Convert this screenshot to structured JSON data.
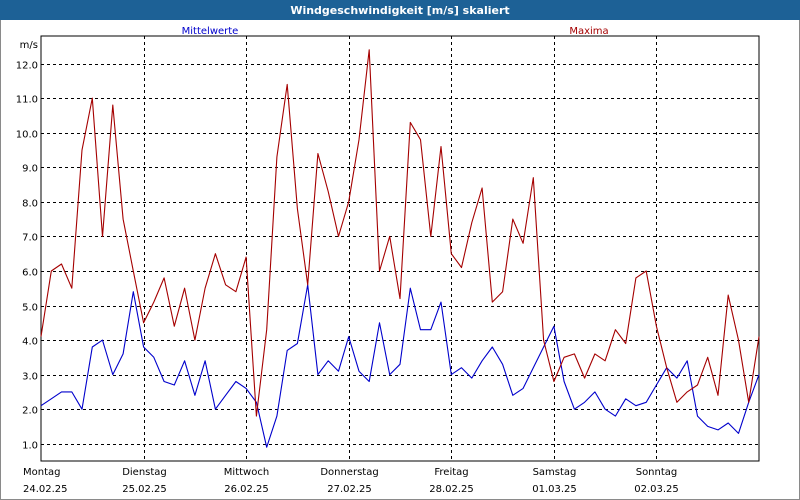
{
  "window": {
    "title": "Windgeschwindigkeit [m/s] skaliert"
  },
  "colors": {
    "title_bar": "#1d6196",
    "mean": "#0000cc",
    "max": "#a50000",
    "grid": "#000000"
  },
  "chart_data": {
    "type": "line",
    "title": "Windgeschwindigkeit [m/s] skaliert",
    "ylabel": "m/s",
    "ylim": [
      0.5,
      12.8
    ],
    "yticks": [
      1.0,
      2.0,
      3.0,
      4.0,
      5.0,
      6.0,
      7.0,
      8.0,
      9.0,
      10.0,
      11.0,
      12.0
    ],
    "ytick_labels": [
      "1.0",
      "2.0",
      "3.0",
      "4.0",
      "5.0",
      "6.0",
      "7.0",
      "8.0",
      "9.0",
      "10.0",
      "11.0",
      "12.0"
    ],
    "x_days": [
      {
        "day": "Montag",
        "date": "24.02.25"
      },
      {
        "day": "Dienstag",
        "date": "25.02.25"
      },
      {
        "day": "Mittwoch",
        "date": "26.02.25"
      },
      {
        "day": "Donnerstag",
        "date": "27.02.25"
      },
      {
        "day": "Freitag",
        "date": "28.02.25"
      },
      {
        "day": "Samstag",
        "date": "01.03.25"
      },
      {
        "day": "Sonntag",
        "date": "02.03.25"
      }
    ],
    "grid": true,
    "series": [
      {
        "name": "Mittelwerte",
        "color": "#0000cc",
        "x": [
          24.0,
          24.1,
          24.2,
          24.3,
          24.4,
          24.5,
          24.6,
          24.7,
          24.8,
          24.9,
          25.0,
          25.1,
          25.2,
          25.3,
          25.4,
          25.5,
          25.6,
          25.7,
          25.8,
          25.9,
          26.0,
          26.1,
          26.2,
          26.3,
          26.4,
          26.5,
          26.6,
          26.7,
          26.8,
          26.9,
          27.0,
          27.1,
          27.2,
          27.3,
          27.4,
          27.5,
          27.6,
          27.7,
          27.8,
          27.9,
          28.0,
          28.1,
          28.2,
          28.3,
          28.4,
          28.5,
          28.6,
          28.7,
          28.8,
          28.9,
          29.0,
          29.1,
          29.2,
          29.3,
          29.4,
          29.5,
          29.6,
          29.7,
          29.8,
          29.9,
          30.0,
          30.1,
          30.2,
          30.3,
          30.4,
          30.5,
          30.6,
          30.7,
          30.8,
          30.9,
          31.0
        ],
        "y": [
          2.1,
          2.3,
          2.5,
          2.5,
          2.0,
          3.8,
          4.0,
          3.0,
          3.6,
          5.4,
          3.8,
          3.5,
          2.8,
          2.7,
          3.4,
          2.4,
          3.4,
          2.0,
          2.4,
          2.8,
          2.6,
          2.2,
          0.9,
          1.8,
          3.7,
          3.9,
          5.6,
          3.0,
          3.4,
          3.1,
          4.1,
          3.1,
          2.8,
          4.5,
          3.0,
          3.3,
          5.5,
          4.3,
          4.3,
          5.1,
          3.0,
          3.2,
          2.9,
          3.4,
          3.8,
          3.3,
          2.4,
          2.6,
          3.2,
          3.8,
          4.4,
          2.8,
          2.0,
          2.2,
          2.5,
          2.0,
          1.8,
          2.3,
          2.1,
          2.2,
          2.7,
          3.2,
          2.9,
          3.4,
          1.8,
          1.5,
          1.4,
          1.6,
          1.3,
          2.2,
          3.0
        ]
      },
      {
        "name": "Maxima",
        "color": "#a50000",
        "x": [
          24.0,
          24.1,
          24.2,
          24.3,
          24.4,
          24.5,
          24.6,
          24.7,
          24.8,
          24.9,
          25.0,
          25.1,
          25.2,
          25.3,
          25.4,
          25.5,
          25.6,
          25.7,
          25.8,
          25.9,
          26.0,
          26.1,
          26.2,
          26.3,
          26.4,
          26.5,
          26.6,
          26.7,
          26.8,
          26.9,
          27.0,
          27.1,
          27.2,
          27.3,
          27.4,
          27.5,
          27.6,
          27.7,
          27.8,
          27.9,
          28.0,
          28.1,
          28.2,
          28.3,
          28.4,
          28.5,
          28.6,
          28.7,
          28.8,
          28.9,
          29.0,
          29.1,
          29.2,
          29.3,
          29.4,
          29.5,
          29.6,
          29.7,
          29.8,
          29.9,
          30.0,
          30.1,
          30.2,
          30.3,
          30.4,
          30.5,
          30.6,
          30.7,
          30.8,
          30.9,
          31.0
        ],
        "y": [
          4.1,
          6.0,
          6.2,
          5.5,
          9.5,
          11.0,
          7.0,
          10.8,
          7.5,
          6.0,
          4.5,
          5.1,
          5.8,
          4.4,
          5.5,
          4.0,
          5.5,
          6.5,
          5.6,
          5.4,
          6.4,
          1.8,
          4.3,
          9.3,
          11.4,
          7.8,
          5.6,
          9.4,
          8.3,
          7.0,
          8.0,
          9.8,
          12.4,
          6.0,
          7.0,
          5.2,
          10.3,
          9.8,
          7.0,
          9.6,
          6.5,
          6.1,
          7.4,
          8.4,
          5.1,
          5.4,
          7.5,
          6.8,
          8.7,
          4.0,
          2.8,
          3.5,
          3.6,
          2.9,
          3.6,
          3.4,
          4.3,
          3.9,
          5.8,
          6.0,
          4.4,
          3.2,
          2.2,
          2.5,
          2.7,
          3.5,
          2.4,
          5.3,
          4.0,
          2.2,
          4.1
        ]
      }
    ]
  }
}
